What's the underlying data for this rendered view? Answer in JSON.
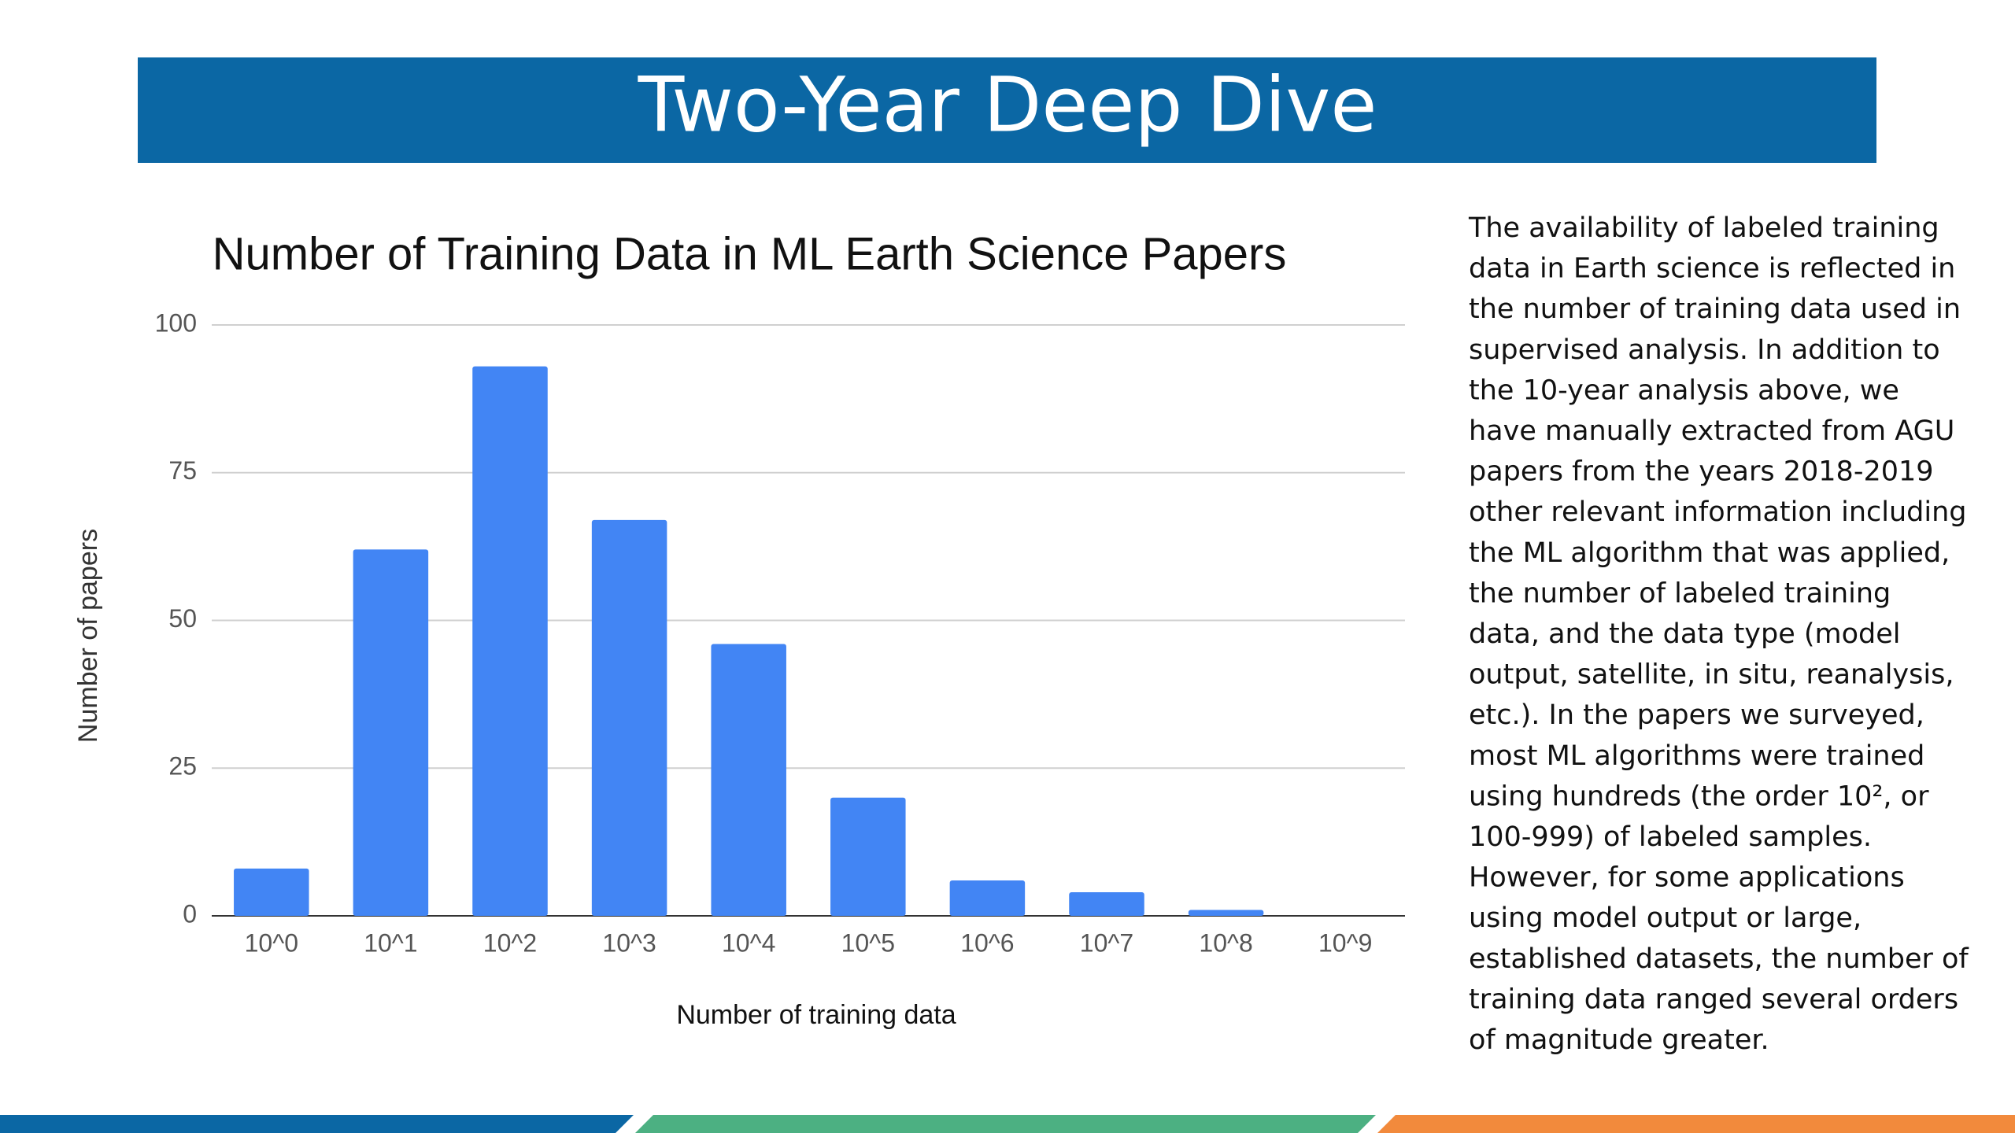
{
  "header": {
    "title": "Two-Year Deep Dive"
  },
  "chart_data": {
    "type": "bar",
    "title": "Number of Training Data in ML Earth Science Papers",
    "x_label": "Number of training data",
    "y_label": "Number of papers",
    "categories": [
      "10^0",
      "10^1",
      "10^2",
      "10^3",
      "10^4",
      "10^5",
      "10^6",
      "10^7",
      "10^8",
      "10^9"
    ],
    "values": [
      8,
      62,
      93,
      67,
      46,
      20,
      6,
      4,
      1,
      0
    ],
    "color": "#4285f4",
    "ylim": [
      0,
      100
    ],
    "yticks": [
      0,
      25,
      50,
      75,
      100
    ],
    "grid": true
  },
  "body": {
    "lines": [
      "The availability of labeled training",
      "data in Earth science is reflected in",
      "the number of training data used in",
      "supervised analysis. In addition to",
      "the 10-year analysis above, we",
      "have manually extracted from AGU",
      "papers from the years 2018-2019",
      "other relevant information including",
      "the ML algorithm that was applied,",
      "the number of labeled training",
      "data, and the data type (model",
      "output, satellite, in situ, reanalysis,",
      "etc.).  In the papers we surveyed,",
      "most ML algorithms were trained",
      "using hundreds (the order 10², or",
      "100-999) of labeled samples.",
      "However, for some applications",
      "using model output or large,",
      "established datasets, the number of",
      "training data ranged several orders",
      "of magnitude greater."
    ]
  }
}
